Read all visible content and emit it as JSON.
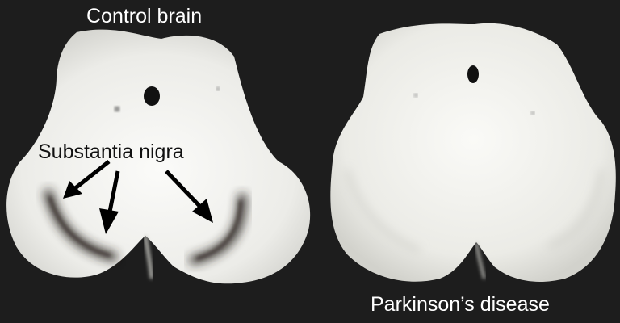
{
  "labels": {
    "control": "Control brain",
    "substantia_nigra": "Substantia nigra",
    "parkinsons": "Parkinson’s disease"
  },
  "colors": {
    "background": "#1d1d1d",
    "tissue": "#f1f1ee",
    "pigment": "#2b2622",
    "annotation_text": "#111111",
    "caption_text": "#ffffff"
  },
  "figure": {
    "left_specimen": "control-midbrain-section",
    "right_specimen": "parkinsons-midbrain-section",
    "arrow_count": 3
  }
}
